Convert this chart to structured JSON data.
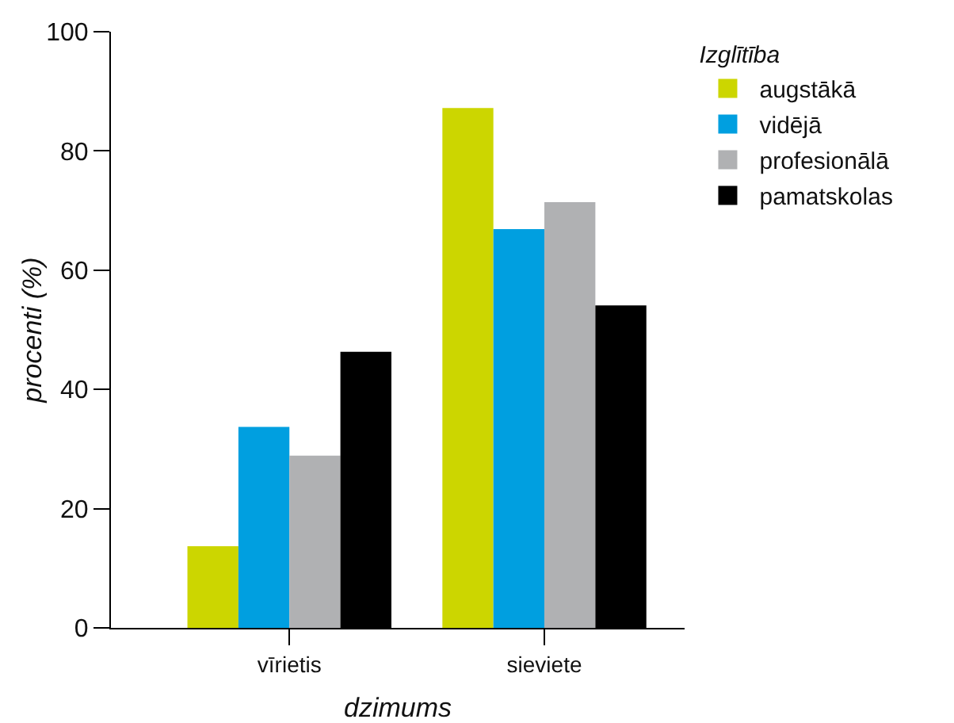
{
  "chart_data": {
    "type": "bar",
    "xlabel": "dzimums",
    "ylabel": "procenti (%)",
    "legend_title": "Izglītība",
    "legend": "top right",
    "grid": false,
    "categories": [
      "vīrietis",
      "sieviete"
    ],
    "series": [
      {
        "name": "augstākā",
        "color": "#ccd600",
        "values": [
          13.7,
          87.2
        ]
      },
      {
        "name": "vidējā",
        "color": "#009fe0",
        "values": [
          33.7,
          66.9
        ]
      },
      {
        "name": "profesionālā",
        "color": "#b0b1b3",
        "values": [
          28.9,
          71.4
        ]
      },
      {
        "name": "pamatskolas",
        "color": "#000000",
        "values": [
          46.3,
          54.1
        ]
      }
    ],
    "ylim": [
      0,
      100
    ],
    "yticks": [
      0,
      20,
      40,
      60,
      80,
      100
    ]
  }
}
